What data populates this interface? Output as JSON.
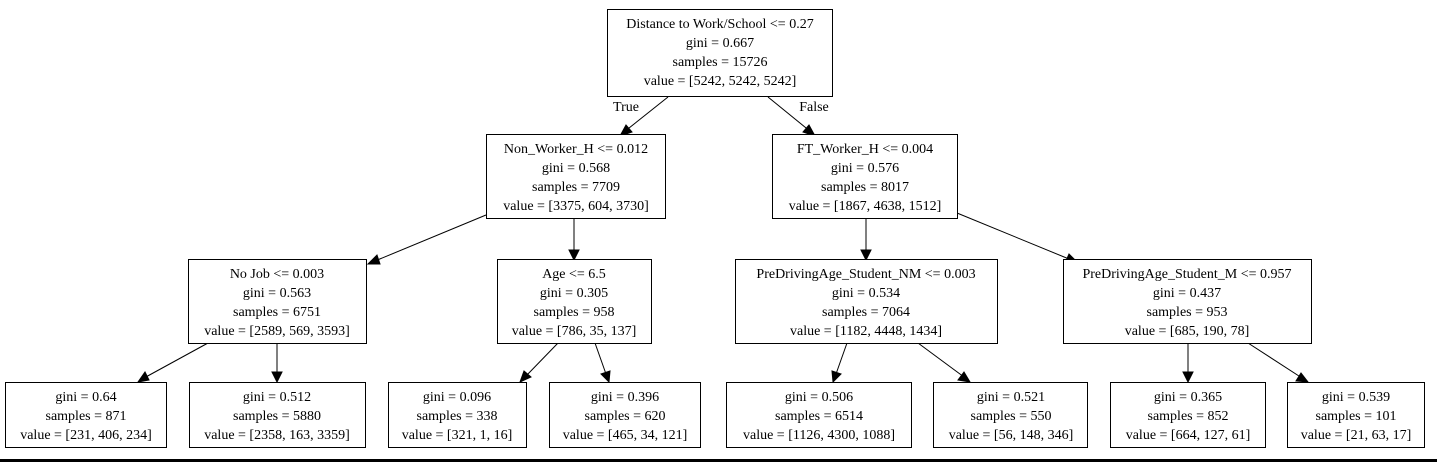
{
  "tree": {
    "edge_labels": {
      "true_label": "True",
      "false_label": "False"
    },
    "nodes": [
      {
        "id": "root",
        "lines": [
          "Distance to Work/School <= 0.27",
          "gini = 0.667",
          "samples = 15726",
          "value = [5242, 5242, 5242]"
        ]
      },
      {
        "id": "n1",
        "lines": [
          "Non_Worker_H <= 0.012",
          "gini = 0.568",
          "samples = 7709",
          "value = [3375, 604, 3730]"
        ]
      },
      {
        "id": "n2",
        "lines": [
          "FT_Worker_H <= 0.004",
          "gini = 0.576",
          "samples = 8017",
          "value = [1867, 4638, 1512]"
        ]
      },
      {
        "id": "n3",
        "lines": [
          "No Job <= 0.003",
          "gini = 0.563",
          "samples = 6751",
          "value = [2589, 569, 3593]"
        ]
      },
      {
        "id": "n4",
        "lines": [
          "Age <= 6.5",
          "gini = 0.305",
          "samples = 958",
          "value = [786, 35, 137]"
        ]
      },
      {
        "id": "n5",
        "lines": [
          "PreDrivingAge_Student_NM <= 0.003",
          "gini = 0.534",
          "samples = 7064",
          "value = [1182, 4448, 1434]"
        ]
      },
      {
        "id": "n6",
        "lines": [
          "PreDrivingAge_Student_M <= 0.957",
          "gini = 0.437",
          "samples = 953",
          "value = [685, 190, 78]"
        ]
      },
      {
        "id": "leaf1",
        "lines": [
          "gini = 0.64",
          "samples = 871",
          "value = [231, 406, 234]"
        ]
      },
      {
        "id": "leaf2",
        "lines": [
          "gini = 0.512",
          "samples = 5880",
          "value = [2358, 163, 3359]"
        ]
      },
      {
        "id": "leaf3",
        "lines": [
          "gini = 0.096",
          "samples = 338",
          "value = [321, 1, 16]"
        ]
      },
      {
        "id": "leaf4",
        "lines": [
          "gini = 0.396",
          "samples = 620",
          "value = [465, 34, 121]"
        ]
      },
      {
        "id": "leaf5",
        "lines": [
          "gini = 0.506",
          "samples = 6514",
          "value = [1126, 4300, 1088]"
        ]
      },
      {
        "id": "leaf6",
        "lines": [
          "gini = 0.521",
          "samples = 550",
          "value = [56, 148, 346]"
        ]
      },
      {
        "id": "leaf7",
        "lines": [
          "gini = 0.365",
          "samples = 852",
          "value = [664, 127, 61]"
        ]
      },
      {
        "id": "leaf8",
        "lines": [
          "gini = 0.539",
          "samples = 101",
          "value = [21, 63, 17]"
        ]
      }
    ]
  }
}
